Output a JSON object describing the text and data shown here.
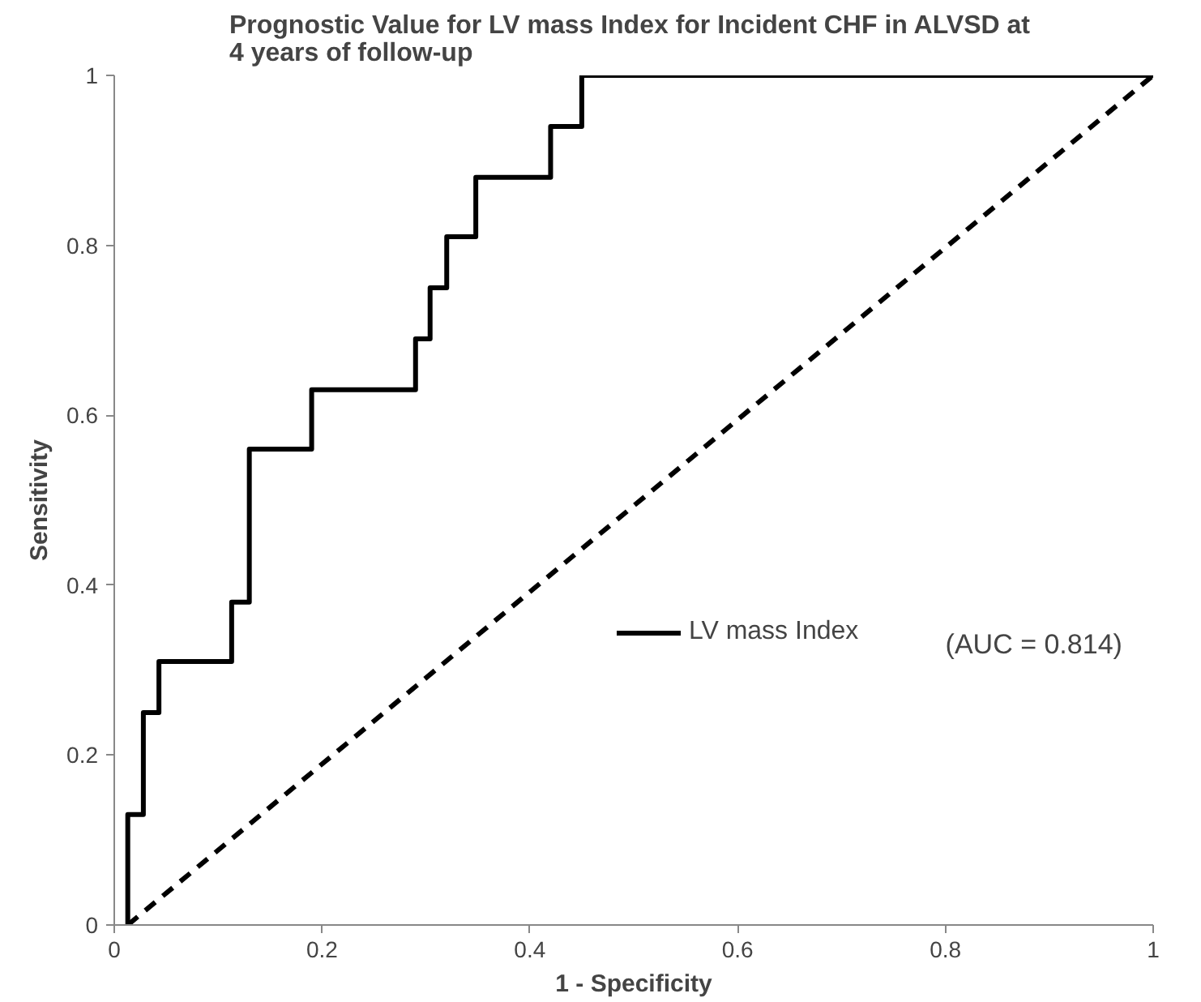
{
  "chart_data": {
    "type": "line",
    "title": "Prognostic Value for LV mass Index  for Incident CHF in ALVSD at 4 years of follow-up",
    "xlabel": "1 - Specificity",
    "ylabel": "Sensitivity",
    "series": [
      {
        "name": "LV mass Index",
        "color": "#000000",
        "line_style": "solid",
        "x": [
          0.013,
          0.013,
          0.028,
          0.028,
          0.043,
          0.043,
          0.113,
          0.113,
          0.13,
          0.13,
          0.19,
          0.19,
          0.29,
          0.29,
          0.304,
          0.304,
          0.32,
          0.32,
          0.348,
          0.348,
          0.42,
          0.42,
          0.45,
          0.45,
          1.0
        ],
        "values": [
          0,
          0.13,
          0.13,
          0.25,
          0.25,
          0.31,
          0.31,
          0.38,
          0.38,
          0.56,
          0.56,
          0.63,
          0.63,
          0.69,
          0.69,
          0.75,
          0.75,
          0.81,
          0.81,
          0.88,
          0.88,
          0.94,
          0.94,
          1,
          1
        ]
      },
      {
        "color": "#000000",
        "line_style": "dashed",
        "x": [
          0.013,
          1.0
        ],
        "values": [
          0,
          1
        ]
      }
    ],
    "annotations": [
      "(AUC = 0.814)"
    ],
    "xlim": [
      0,
      1
    ],
    "ylim": [
      0,
      1
    ],
    "xticks": [
      0,
      0.2,
      0.4,
      0.6,
      0.8,
      1
    ],
    "yticks": [
      0,
      0.2,
      0.4,
      0.6,
      0.8,
      1
    ],
    "grid": false,
    "legend": "right",
    "marker": "none"
  }
}
